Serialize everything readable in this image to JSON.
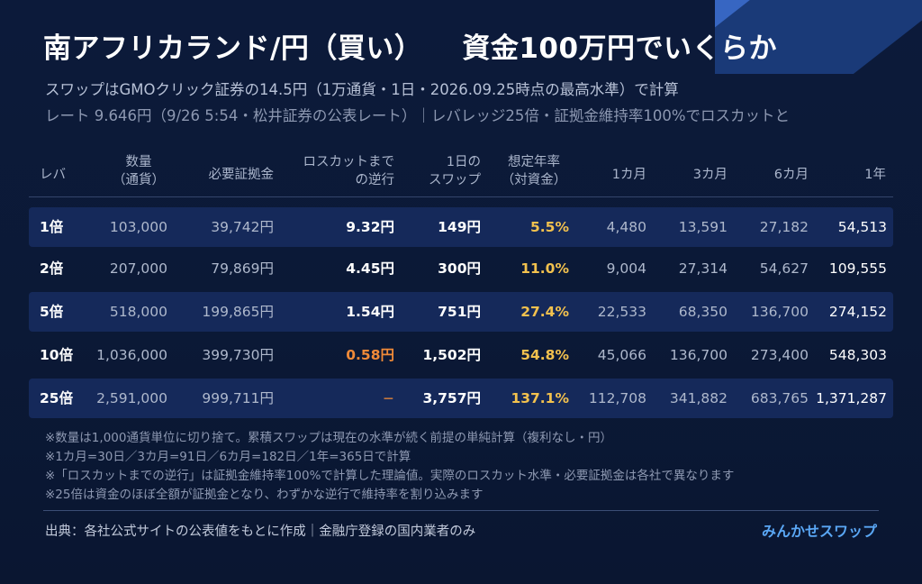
{
  "title": "南アフリカランド/円（買い）",
  "title_right": "資金100万円でいくらか",
  "subtitle_line1": "スワップはGMOクリック証券の14.5円（1万通貨・1日・2026.09.25時点の最高水準）で計算",
  "subtitle_line2": "レート 9.646円（9/26 5:54・松井証券の公表レート）｜レバレッジ25倍・証拠金維持率100%でロスカットと",
  "table": {
    "headers": {
      "lev": "レバ",
      "qty1": "数量",
      "qty2": "（通貨）",
      "margin": "必要証拠金",
      "loss1": "ロスカットまで",
      "loss2": "の逆行",
      "swap1": "1日の",
      "swap2": "スワップ",
      "rate1": "想定年率",
      "rate2": "（対資金）",
      "m1": "1カ月",
      "m3": "3カ月",
      "m6": "6カ月",
      "y1": "1年"
    },
    "rows": [
      {
        "lev": "1倍",
        "qty": "103,000",
        "margin": "39,742円",
        "loss": "9.32円",
        "swap": "149円",
        "rate": "5.5%",
        "m1": "4,480",
        "m3": "13,591",
        "m6": "27,182",
        "y1": "54,513"
      },
      {
        "lev": "2倍",
        "qty": "207,000",
        "margin": "79,869円",
        "loss": "4.45円",
        "swap": "300円",
        "rate": "11.0%",
        "m1": "9,004",
        "m3": "27,314",
        "m6": "54,627",
        "y1": "109,555"
      },
      {
        "lev": "5倍",
        "qty": "518,000",
        "margin": "199,865円",
        "loss": "1.54円",
        "swap": "751円",
        "rate": "27.4%",
        "m1": "22,533",
        "m3": "68,350",
        "m6": "136,700",
        "y1": "274,152"
      },
      {
        "lev": "10倍",
        "qty": "1,036,000",
        "margin": "399,730円",
        "loss": "0.58円",
        "swap": "1,502円",
        "rate": "54.8%",
        "m1": "45,066",
        "m3": "136,700",
        "m6": "273,400",
        "y1": "548,303"
      },
      {
        "lev": "25倍",
        "qty": "2,591,000",
        "margin": "999,711円",
        "loss": "−",
        "swap": "3,757円",
        "rate": "137.1%",
        "m1": "112,708",
        "m3": "341,882",
        "m6": "683,765",
        "y1": "1,371,287"
      }
    ]
  },
  "notes": [
    "※数量は1,000通貨単位に切り捨て。累積スワップは現在の水準が続く前提の単純計算（複利なし・円）",
    "※1カ月=30日／3カ月=91日／6カ月=182日／1年=365日で計算",
    "※「ロスカットまでの逆行」は証拠金維持率100%で計算した理論値。実際のロスカット水準・必要証拠金は各社で異なります",
    "※25倍は資金のほぼ全額が証拠金となり、わずかな逆行で維持率を割り込みます"
  ],
  "source": "出典：各社公式サイトの公表値をもとに作成｜金融庁登録の国内業者のみ",
  "brand": "みんかせスワップ",
  "colors": {
    "background": "#0c1a3a",
    "row_shade": "#15295a",
    "gold": "#f2c14e",
    "orange": "#f08a38",
    "brand": "#5aa7f5"
  }
}
